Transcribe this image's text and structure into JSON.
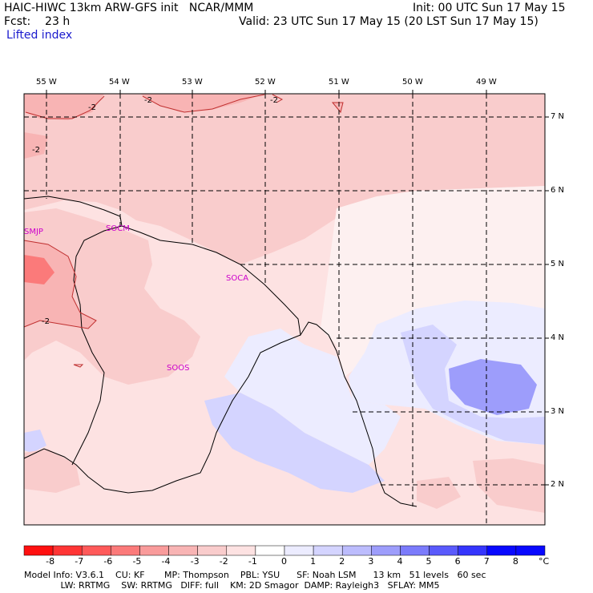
{
  "header": {
    "title_left": "HAIC-HIWC 13km ARW-GFS init   NCAR/MMM",
    "init": "Init: 00 UTC Sun 17 May 15",
    "fcst": "Fcst:    23 h",
    "valid": "Valid: 23 UTC Sun 17 May 15 (20 LST Sun 17 May 15)",
    "field": "Lifted index"
  },
  "map": {
    "lon_labels": [
      "55 W",
      "54 W",
      "53 W",
      "52 W",
      "51 W",
      "50 W",
      "49 W"
    ],
    "lat_labels": [
      "7 N",
      "6 N",
      "5 N",
      "4 N",
      "3 N",
      "2 N"
    ],
    "stations": [
      "SMJP",
      "SOCM",
      "SOCA",
      "SOOS"
    ],
    "contour_labels": [
      "-2",
      "-2",
      "-2",
      "-2",
      "-2"
    ]
  },
  "colorbar": {
    "ticks": [
      "-8",
      "-7",
      "-6",
      "-5",
      "-4",
      "-3",
      "-2",
      "-1",
      "0",
      "1",
      "2",
      "3",
      "4",
      "5",
      "6",
      "7",
      "8"
    ],
    "unit": "°C",
    "colors": [
      "#ff1010",
      "#ff3535",
      "#ff5a5a",
      "#fb7a7a",
      "#f99b9b",
      "#f8b4b4",
      "#f9cccc",
      "#fde2e2",
      "#ffffff",
      "#ececff",
      "#d4d4ff",
      "#bcbcfd",
      "#9d9dfb",
      "#7b7bfb",
      "#5a5afc",
      "#3535fd",
      "#0808ff"
    ]
  },
  "footer": {
    "line1": "Model Info: V3.6.1    CU: KF       MP: Thompson    PBL: YSU      SF: Noah LSM      13 km   51 levels   60 sec",
    "line2": "             LW: RRTMG    SW: RRTMG   DIFF: full    KM: 2D Smagor  DAMP: Rayleigh3   SFLAY: MM5"
  }
}
